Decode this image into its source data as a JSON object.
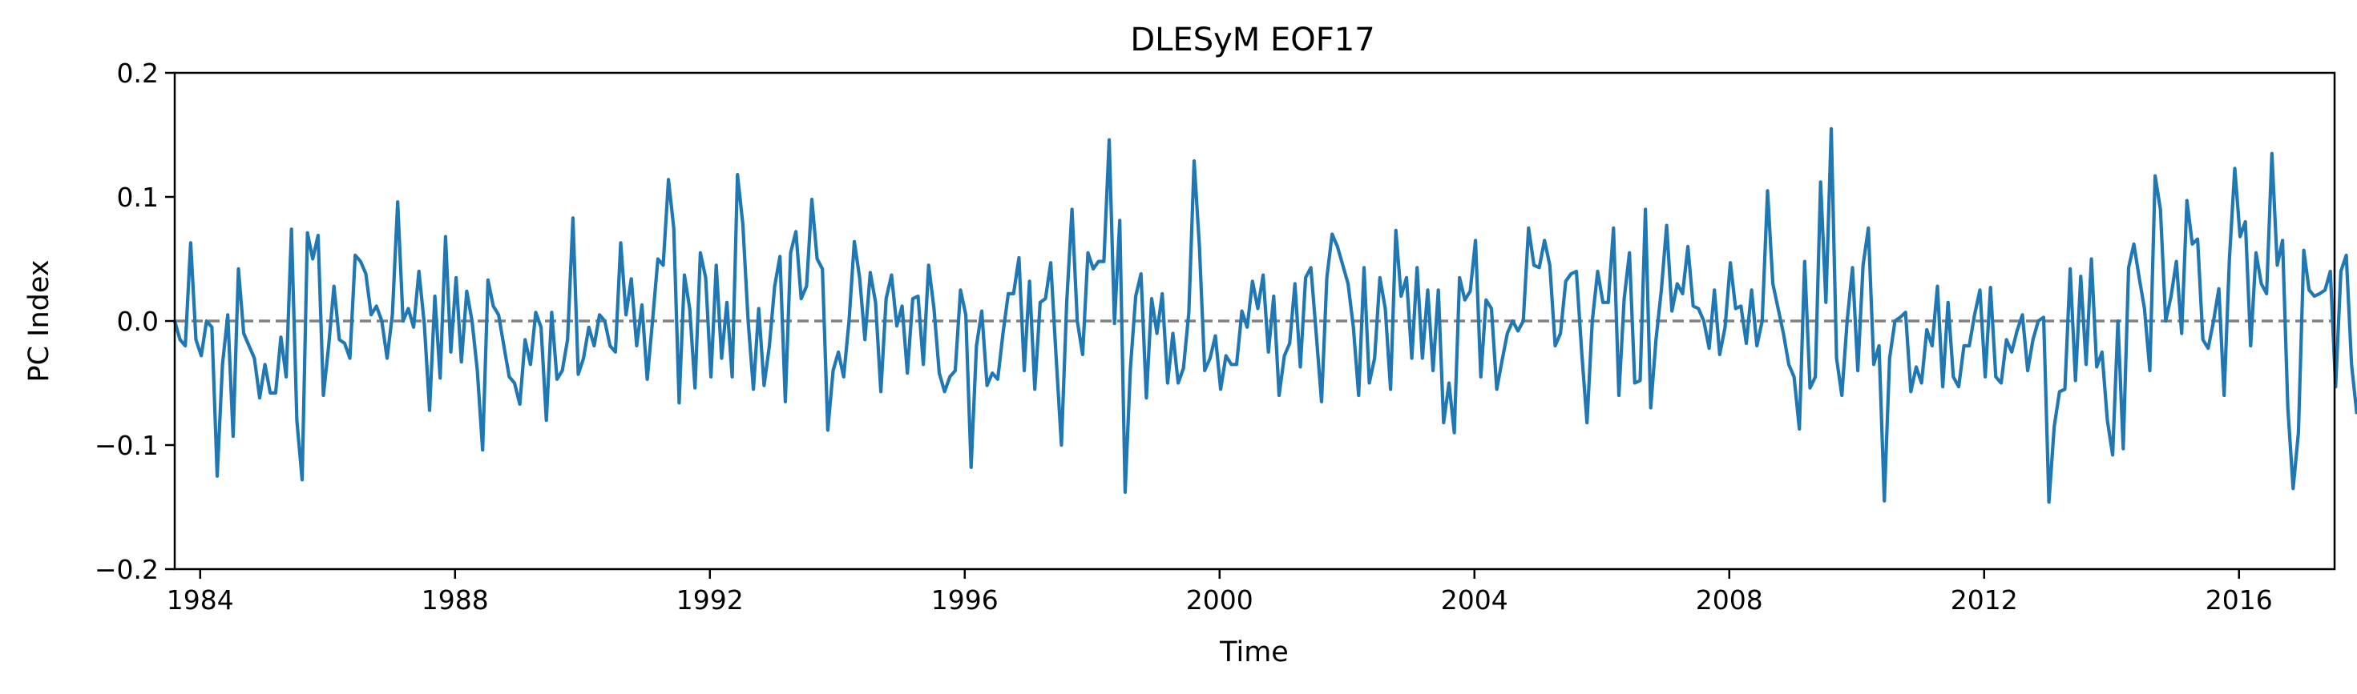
{
  "chart_data": {
    "type": "line",
    "title": "DLESyM  EOF17",
    "xlabel": "Time",
    "ylabel": "PC Index",
    "xlim": [
      1983.6,
      2017.5
    ],
    "ylim": [
      -0.2,
      0.2
    ],
    "xticks": [
      1984,
      1988,
      1992,
      1996,
      2000,
      2004,
      2008,
      2012,
      2016
    ],
    "xtick_labels": [
      "1984",
      "1988",
      "1992",
      "1996",
      "2000",
      "2004",
      "2008",
      "2012",
      "2016"
    ],
    "yticks": [
      -0.2,
      -0.1,
      0.0,
      0.1,
      0.2
    ],
    "ytick_labels": [
      "−0.2",
      "−0.1",
      "0.0",
      "0.1",
      "0.2"
    ],
    "reference_line": {
      "y": 0.0,
      "style": "dashed",
      "color": "#808080"
    },
    "grid": false,
    "legend": "none",
    "series": [
      {
        "color": "#1f77b4",
        "x_start": 1983.6,
        "x_step": 0.0833333,
        "values": [
          0.0,
          -0.015,
          -0.02,
          0.063,
          -0.015,
          -0.028,
          0.0,
          -0.005,
          -0.125,
          -0.035,
          0.005,
          -0.093,
          0.042,
          -0.01,
          -0.02,
          -0.03,
          -0.062,
          -0.035,
          -0.058,
          -0.058,
          -0.013,
          -0.045,
          0.074,
          -0.08,
          -0.128,
          0.071,
          0.05,
          0.069,
          -0.06,
          -0.02,
          0.028,
          -0.015,
          -0.018,
          -0.03,
          0.053,
          0.048,
          0.038,
          0.005,
          0.012,
          0.0,
          -0.03,
          0.005,
          0.096,
          0.0,
          0.01,
          -0.005,
          0.04,
          -0.002,
          -0.072,
          0.02,
          -0.046,
          0.068,
          -0.025,
          0.035,
          -0.033,
          0.024,
          0.0,
          -0.04,
          -0.104,
          0.033,
          0.012,
          0.005,
          -0.02,
          -0.045,
          -0.05,
          -0.067,
          -0.015,
          -0.035,
          0.007,
          -0.005,
          -0.08,
          0.007,
          -0.047,
          -0.04,
          -0.015,
          0.083,
          -0.043,
          -0.03,
          -0.005,
          -0.02,
          0.005,
          0.0,
          -0.02,
          -0.025,
          0.063,
          0.005,
          0.034,
          -0.02,
          0.013,
          -0.047,
          0.0,
          0.05,
          0.045,
          0.114,
          0.075,
          -0.066,
          0.037,
          0.01,
          -0.054,
          0.055,
          0.035,
          -0.045,
          0.045,
          -0.03,
          0.015,
          -0.045,
          0.118,
          0.078,
          0.0,
          -0.055,
          0.01,
          -0.052,
          -0.02,
          0.028,
          0.052,
          -0.065,
          0.055,
          0.072,
          0.018,
          0.028,
          0.098,
          0.05,
          0.042,
          -0.088,
          -0.04,
          -0.025,
          -0.045,
          0.0,
          0.064,
          0.035,
          -0.015,
          0.039,
          0.015,
          -0.057,
          0.018,
          0.037,
          -0.004,
          0.012,
          -0.042,
          0.018,
          0.02,
          -0.035,
          0.045,
          0.01,
          -0.042,
          -0.057,
          -0.045,
          -0.04,
          0.025,
          0.005,
          -0.118,
          -0.02,
          0.008,
          -0.052,
          -0.042,
          -0.047,
          -0.01,
          0.022,
          0.022,
          0.051,
          -0.04,
          0.032,
          -0.055,
          0.015,
          0.018,
          0.047,
          -0.028,
          -0.1,
          0.015,
          0.09,
          0.0,
          -0.027,
          0.055,
          0.042,
          0.048,
          0.048,
          0.146,
          -0.002,
          0.081,
          -0.138,
          -0.038,
          0.02,
          0.038,
          -0.062,
          0.018,
          -0.01,
          0.022,
          -0.05,
          -0.01,
          -0.05,
          -0.038,
          0.007,
          0.129,
          0.06,
          -0.04,
          -0.03,
          -0.012,
          -0.055,
          -0.028,
          -0.035,
          -0.035,
          0.008,
          -0.005,
          0.032,
          0.01,
          0.037,
          -0.025,
          0.02,
          -0.06,
          -0.028,
          -0.018,
          0.03,
          -0.037,
          0.035,
          0.043,
          -0.01,
          -0.065,
          0.035,
          0.07,
          0.06,
          0.045,
          0.03,
          -0.005,
          -0.06,
          0.043,
          -0.05,
          -0.03,
          0.035,
          0.01,
          -0.055,
          0.073,
          0.02,
          0.035,
          -0.03,
          0.043,
          -0.03,
          0.025,
          -0.04,
          0.025,
          -0.082,
          -0.05,
          -0.09,
          0.035,
          0.017,
          0.024,
          0.065,
          -0.045,
          0.017,
          0.01,
          -0.055,
          -0.032,
          -0.01,
          0.0,
          -0.008,
          0.0,
          0.075,
          0.045,
          0.043,
          0.065,
          0.045,
          -0.02,
          -0.01,
          0.032,
          0.038,
          0.04,
          -0.025,
          -0.082,
          0.0,
          0.04,
          0.015,
          0.015,
          0.075,
          -0.06,
          0.018,
          0.055,
          -0.05,
          -0.048,
          0.09,
          -0.07,
          -0.015,
          0.025,
          0.077,
          0.008,
          0.03,
          0.022,
          0.06,
          0.012,
          0.01,
          0.0,
          -0.022,
          0.025,
          -0.027,
          -0.005,
          0.047,
          0.01,
          0.012,
          -0.018,
          0.025,
          -0.02,
          0.0,
          0.105,
          0.03,
          0.01,
          -0.01,
          -0.035,
          -0.045,
          -0.087,
          0.048,
          -0.054,
          -0.045,
          0.112,
          0.015,
          0.155,
          -0.03,
          -0.06,
          0.0,
          0.043,
          -0.04,
          0.045,
          0.075,
          -0.035,
          -0.02,
          -0.145,
          -0.03,
          0.0,
          0.003,
          0.007,
          -0.057,
          -0.037,
          -0.05,
          -0.007,
          -0.02,
          0.028,
          -0.053,
          0.015,
          -0.045,
          -0.053,
          -0.02,
          -0.02,
          0.005,
          0.025,
          -0.045,
          0.027,
          -0.045,
          -0.05,
          -0.015,
          -0.025,
          -0.008,
          0.005,
          -0.04,
          -0.015,
          0.0,
          0.003,
          -0.146,
          -0.085,
          -0.057,
          -0.055,
          0.042,
          -0.048,
          0.036,
          -0.035,
          0.05,
          -0.037,
          -0.025,
          -0.08,
          -0.108,
          0.0,
          -0.103,
          0.043,
          0.062,
          0.035,
          0.01,
          -0.04,
          0.117,
          0.09,
          0.0,
          0.02,
          0.048,
          -0.01,
          0.097,
          0.062,
          0.066,
          -0.015,
          -0.022,
          0.0,
          0.026,
          -0.06,
          0.05,
          0.123,
          0.068,
          0.08,
          -0.02,
          0.055,
          0.03,
          0.022,
          0.135,
          0.045,
          0.065,
          -0.07,
          -0.135,
          -0.09,
          0.057,
          0.025,
          0.02,
          0.022,
          0.025,
          0.04,
          -0.053,
          0.04,
          0.053,
          -0.035,
          -0.075
        ]
      }
    ]
  }
}
